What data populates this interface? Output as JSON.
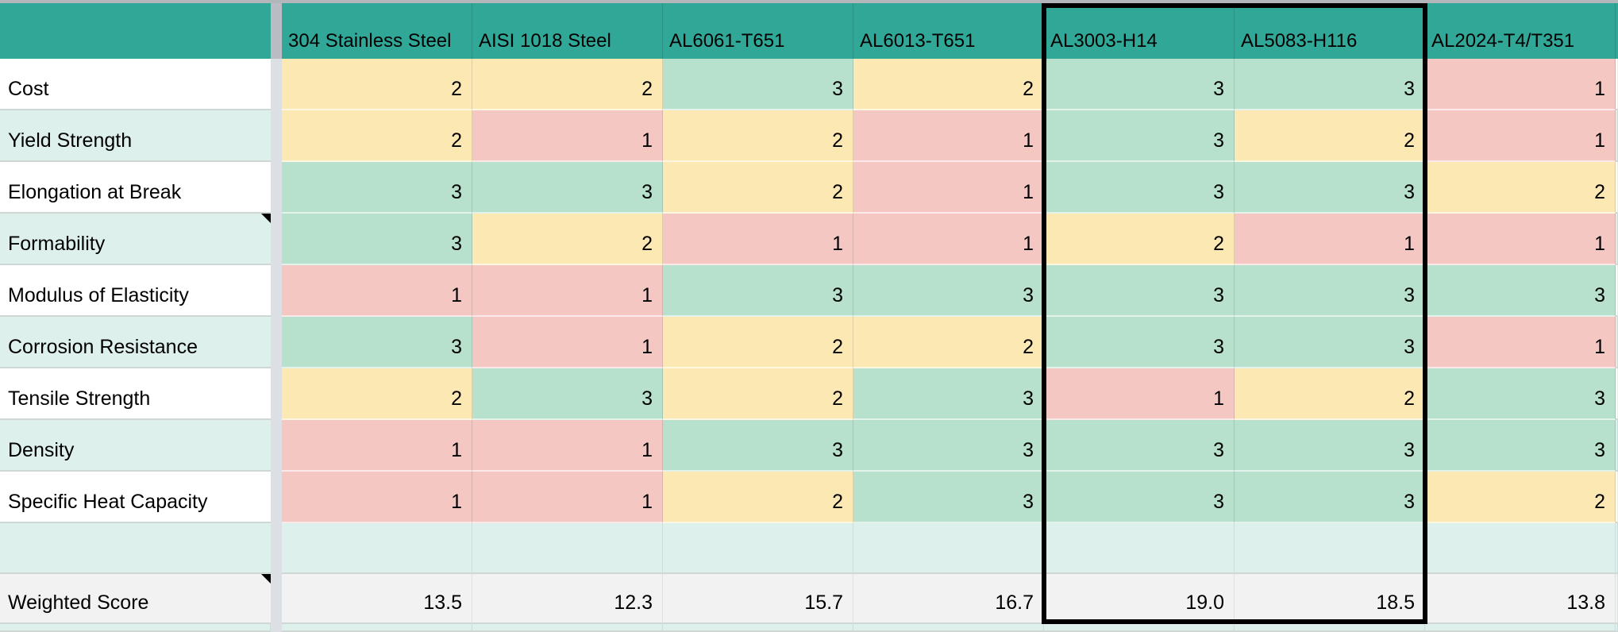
{
  "sheet": {
    "corner_label": "",
    "columns": [
      "304 Stainless Steel",
      "AISI 1018 Steel",
      "AL6061-T651",
      "AL6013-T651",
      "AL3003-H14",
      "AL5083-H116",
      "AL2024-T4/T351"
    ],
    "rows": [
      {
        "label": "Cost",
        "scores": [
          2,
          2,
          3,
          2,
          3,
          3,
          1
        ],
        "note": false
      },
      {
        "label": "Yield Strength",
        "scores": [
          2,
          1,
          2,
          1,
          3,
          2,
          1
        ],
        "note": false
      },
      {
        "label": "Elongation at Break",
        "scores": [
          3,
          3,
          2,
          1,
          3,
          3,
          2
        ],
        "note": false
      },
      {
        "label": "Formability",
        "scores": [
          3,
          2,
          1,
          1,
          2,
          1,
          1
        ],
        "note": true
      },
      {
        "label": "Modulus of Elasticity",
        "scores": [
          1,
          1,
          3,
          3,
          3,
          3,
          3
        ],
        "note": false
      },
      {
        "label": "Corrosion Resistance",
        "scores": [
          3,
          1,
          2,
          2,
          3,
          3,
          1
        ],
        "note": false
      },
      {
        "label": "Tensile Strength",
        "scores": [
          2,
          3,
          2,
          3,
          1,
          2,
          3
        ],
        "note": false
      },
      {
        "label": "Density",
        "scores": [
          1,
          1,
          3,
          3,
          3,
          3,
          3
        ],
        "note": false
      },
      {
        "label": "Specific Heat Capacity",
        "scores": [
          1,
          1,
          2,
          3,
          3,
          3,
          2
        ],
        "note": false
      }
    ],
    "blank_row": {
      "label": ""
    },
    "weighted_row": {
      "label": "Weighted Score",
      "values": [
        "13.5",
        "12.3",
        "15.7",
        "16.7",
        "19.0",
        "18.5",
        "13.8"
      ],
      "note": true
    },
    "score_colors": {
      "1": "#f4c7c3",
      "2": "#fce8b2",
      "3": "#b7e1cd"
    },
    "theme": {
      "header_teal": "#30a797",
      "band_light_teal": "#ddf0ec",
      "band_white": "#ffffff",
      "weighted_gray": "#f1f2f1",
      "frozen_divider_gray": "#dcdfe4",
      "top_edge_gray": "#b3b7bc",
      "selection_border": "#000000"
    },
    "selection": {
      "start_column": "AL3003-H14",
      "end_column": "AL5083-H116"
    }
  }
}
